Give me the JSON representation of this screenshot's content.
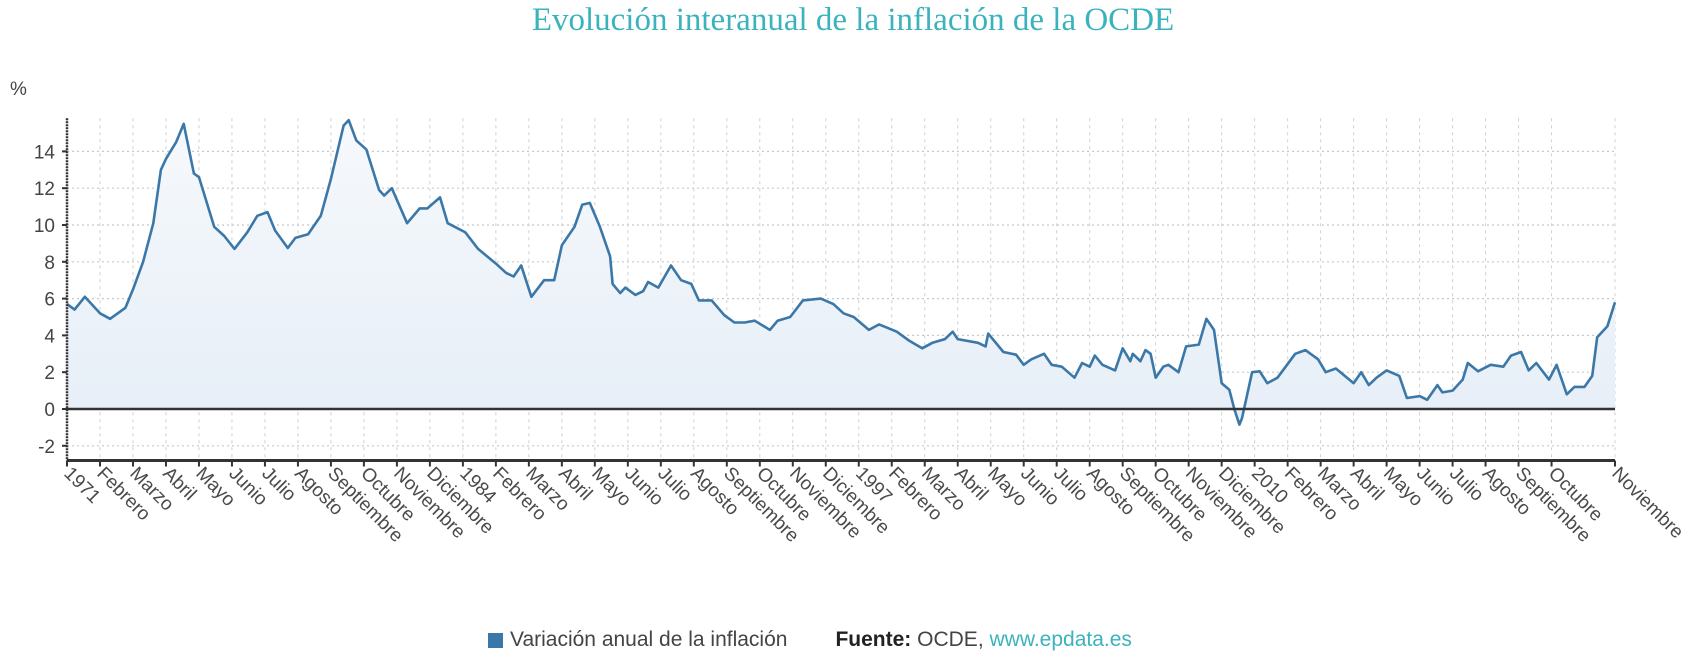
{
  "title": "Evolución interanual de la inflación de la OCDE",
  "legend": {
    "label": "Variación anual de la inflación",
    "color": "#3b78a8"
  },
  "source": {
    "label": "Fuente:",
    "text": "OCDE,",
    "link": "www.epdata.es"
  },
  "colors": {
    "title": "#3bb3bd",
    "line": "#3b78a8",
    "fill": "#e8eff7",
    "zero_line": "#333333"
  },
  "chart_data": {
    "type": "area",
    "title": "Evolución interanual de la inflación de la OCDE",
    "ylabel": "%",
    "xlabel": "",
    "ylim": [
      -2.8,
      15.8
    ],
    "yticks": [
      -2,
      0,
      2,
      4,
      6,
      8,
      10,
      12,
      14
    ],
    "x_range": [
      "1971-01",
      "2021-11"
    ],
    "grid": true,
    "legend_position": "bottom",
    "xtick_labels": [
      {
        "date": "1971-01",
        "label": "1971"
      },
      {
        "date": "1972-02",
        "label": "Febrero"
      },
      {
        "date": "1973-03",
        "label": "Marzo"
      },
      {
        "date": "1974-04",
        "label": "Abril"
      },
      {
        "date": "1975-05",
        "label": "Mayo"
      },
      {
        "date": "1976-06",
        "label": "Junio"
      },
      {
        "date": "1977-07",
        "label": "Julio"
      },
      {
        "date": "1978-08",
        "label": "Agosto"
      },
      {
        "date": "1979-09",
        "label": "Septiembre"
      },
      {
        "date": "1980-10",
        "label": "Octubre"
      },
      {
        "date": "1981-11",
        "label": "Noviembre"
      },
      {
        "date": "1982-12",
        "label": "Diciembre"
      },
      {
        "date": "1984-01",
        "label": "1984"
      },
      {
        "date": "1985-02",
        "label": "Febrero"
      },
      {
        "date": "1986-03",
        "label": "Marzo"
      },
      {
        "date": "1987-04",
        "label": "Abril"
      },
      {
        "date": "1988-05",
        "label": "Mayo"
      },
      {
        "date": "1989-06",
        "label": "Junio"
      },
      {
        "date": "1990-07",
        "label": "Julio"
      },
      {
        "date": "1991-08",
        "label": "Agosto"
      },
      {
        "date": "1992-09",
        "label": "Septiembre"
      },
      {
        "date": "1993-10",
        "label": "Octubre"
      },
      {
        "date": "1994-11",
        "label": "Noviembre"
      },
      {
        "date": "1995-12",
        "label": "Diciembre"
      },
      {
        "date": "1997-01",
        "label": "1997"
      },
      {
        "date": "1998-02",
        "label": "Febrero"
      },
      {
        "date": "1999-03",
        "label": "Marzo"
      },
      {
        "date": "2000-04",
        "label": "Abril"
      },
      {
        "date": "2001-05",
        "label": "Mayo"
      },
      {
        "date": "2002-06",
        "label": "Junio"
      },
      {
        "date": "2003-07",
        "label": "Julio"
      },
      {
        "date": "2004-08",
        "label": "Agosto"
      },
      {
        "date": "2005-09",
        "label": "Septiembre"
      },
      {
        "date": "2006-10",
        "label": "Octubre"
      },
      {
        "date": "2007-11",
        "label": "Noviembre"
      },
      {
        "date": "2008-12",
        "label": "Diciembre"
      },
      {
        "date": "2010-01",
        "label": "2010"
      },
      {
        "date": "2011-02",
        "label": "Febrero"
      },
      {
        "date": "2012-03",
        "label": "Marzo"
      },
      {
        "date": "2013-04",
        "label": "Abril"
      },
      {
        "date": "2014-05",
        "label": "Mayo"
      },
      {
        "date": "2015-06",
        "label": "Junio"
      },
      {
        "date": "2016-07",
        "label": "Julio"
      },
      {
        "date": "2017-08",
        "label": "Agosto"
      },
      {
        "date": "2018-09",
        "label": "Septiembre"
      },
      {
        "date": "2019-10",
        "label": "Octubre"
      },
      {
        "date": "2021-11",
        "label": "Noviembre"
      }
    ],
    "series": [
      {
        "name": "Variación anual de la inflación",
        "points": [
          [
            "1971-01",
            5.7
          ],
          [
            "1971-04",
            5.4
          ],
          [
            "1971-08",
            6.1
          ],
          [
            "1972-02",
            5.2
          ],
          [
            "1972-06",
            4.9
          ],
          [
            "1972-12",
            5.5
          ],
          [
            "1973-03",
            6.5
          ],
          [
            "1973-07",
            8.0
          ],
          [
            "1973-11",
            10.1
          ],
          [
            "1974-02",
            13.0
          ],
          [
            "1974-04",
            13.6
          ],
          [
            "1974-08",
            14.5
          ],
          [
            "1974-11",
            15.5
          ],
          [
            "1975-03",
            12.8
          ],
          [
            "1975-05",
            12.6
          ],
          [
            "1975-11",
            9.9
          ],
          [
            "1976-03",
            9.4
          ],
          [
            "1976-07",
            8.7
          ],
          [
            "1976-12",
            9.6
          ],
          [
            "1977-04",
            10.5
          ],
          [
            "1977-08",
            10.7
          ],
          [
            "1977-11",
            9.7
          ],
          [
            "1978-04",
            8.75
          ],
          [
            "1978-07",
            9.3
          ],
          [
            "1978-12",
            9.5
          ],
          [
            "1979-05",
            10.5
          ],
          [
            "1979-09",
            12.5
          ],
          [
            "1980-02",
            15.4
          ],
          [
            "1980-04",
            15.7
          ],
          [
            "1980-07",
            14.6
          ],
          [
            "1980-11",
            14.1
          ],
          [
            "1981-04",
            11.9
          ],
          [
            "1981-06",
            11.6
          ],
          [
            "1981-09",
            12.0
          ],
          [
            "1982-03",
            10.1
          ],
          [
            "1982-08",
            10.9
          ],
          [
            "1982-11",
            10.9
          ],
          [
            "1983-04",
            11.5
          ],
          [
            "1983-07",
            10.1
          ],
          [
            "1984-02",
            9.6
          ],
          [
            "1984-07",
            8.7
          ],
          [
            "1985-02",
            7.9
          ],
          [
            "1985-06",
            7.4
          ],
          [
            "1985-09",
            7.2
          ],
          [
            "1985-12",
            7.8
          ],
          [
            "1986-04",
            6.1
          ],
          [
            "1986-09",
            7.0
          ],
          [
            "1987-01",
            7.0
          ],
          [
            "1987-04",
            8.9
          ],
          [
            "1987-09",
            9.9
          ],
          [
            "1987-12",
            11.1
          ],
          [
            "1988-03",
            11.2
          ],
          [
            "1988-07",
            9.9
          ],
          [
            "1988-11",
            8.3
          ],
          [
            "1988-12",
            6.8
          ],
          [
            "1989-03",
            6.3
          ],
          [
            "1989-05",
            6.6
          ],
          [
            "1989-09",
            6.2
          ],
          [
            "1989-12",
            6.4
          ],
          [
            "1990-02",
            6.9
          ],
          [
            "1990-06",
            6.6
          ],
          [
            "1990-11",
            7.8
          ],
          [
            "1991-03",
            7.0
          ],
          [
            "1991-07",
            6.8
          ],
          [
            "1991-10",
            5.9
          ],
          [
            "1992-03",
            5.9
          ],
          [
            "1992-08",
            5.1
          ],
          [
            "1992-12",
            4.7
          ],
          [
            "1993-04",
            4.7
          ],
          [
            "1993-08",
            4.8
          ],
          [
            "1994-02",
            4.3
          ],
          [
            "1994-05",
            4.8
          ],
          [
            "1994-10",
            5.0
          ],
          [
            "1995-03",
            5.9
          ],
          [
            "1995-10",
            6.0
          ],
          [
            "1996-03",
            5.7
          ],
          [
            "1996-07",
            5.2
          ],
          [
            "1996-11",
            5.0
          ],
          [
            "1997-05",
            4.3
          ],
          [
            "1997-09",
            4.6
          ],
          [
            "1998-04",
            4.2
          ],
          [
            "1998-09",
            3.7
          ],
          [
            "1999-02",
            3.3
          ],
          [
            "1999-06",
            3.6
          ],
          [
            "1999-11",
            3.8
          ],
          [
            "2000-02",
            4.2
          ],
          [
            "2000-04",
            3.8
          ],
          [
            "2000-12",
            3.6
          ],
          [
            "2001-03",
            3.4
          ],
          [
            "2001-04",
            4.1
          ],
          [
            "2001-10",
            3.1
          ],
          [
            "2002-03",
            2.95
          ],
          [
            "2002-06",
            2.4
          ],
          [
            "2002-09",
            2.7
          ],
          [
            "2003-02",
            3.0
          ],
          [
            "2003-05",
            2.4
          ],
          [
            "2003-09",
            2.3
          ],
          [
            "2004-02",
            1.7
          ],
          [
            "2004-05",
            2.5
          ],
          [
            "2004-08",
            2.3
          ],
          [
            "2004-10",
            2.9
          ],
          [
            "2005-01",
            2.4
          ],
          [
            "2005-06",
            2.1
          ],
          [
            "2005-09",
            3.3
          ],
          [
            "2005-12",
            2.6
          ],
          [
            "2006-01",
            3.0
          ],
          [
            "2006-04",
            2.6
          ],
          [
            "2006-06",
            3.2
          ],
          [
            "2006-08",
            3.0
          ],
          [
            "2006-10",
            1.7
          ],
          [
            "2007-01",
            2.3
          ],
          [
            "2007-03",
            2.4
          ],
          [
            "2007-07",
            2.0
          ],
          [
            "2007-10",
            3.4
          ],
          [
            "2008-03",
            3.5
          ],
          [
            "2008-06",
            4.9
          ],
          [
            "2008-09",
            4.3
          ],
          [
            "2008-12",
            1.4
          ],
          [
            "2009-03",
            1.05
          ],
          [
            "2009-05",
            0.0
          ],
          [
            "2009-07",
            -0.85
          ],
          [
            "2009-08",
            -0.5
          ],
          [
            "2009-12",
            2.0
          ],
          [
            "2010-03",
            2.05
          ],
          [
            "2010-06",
            1.4
          ],
          [
            "2010-10",
            1.7
          ],
          [
            "2011-05",
            3.0
          ],
          [
            "2011-09",
            3.2
          ],
          [
            "2012-02",
            2.7
          ],
          [
            "2012-05",
            2.0
          ],
          [
            "2012-09",
            2.2
          ],
          [
            "2013-04",
            1.4
          ],
          [
            "2013-07",
            2.0
          ],
          [
            "2013-10",
            1.3
          ],
          [
            "2014-01",
            1.7
          ],
          [
            "2014-05",
            2.1
          ],
          [
            "2014-10",
            1.8
          ],
          [
            "2015-01",
            0.6
          ],
          [
            "2015-06",
            0.7
          ],
          [
            "2015-09",
            0.5
          ],
          [
            "2016-01",
            1.3
          ],
          [
            "2016-03",
            0.9
          ],
          [
            "2016-07",
            1.0
          ],
          [
            "2016-11",
            1.6
          ],
          [
            "2017-01",
            2.5
          ],
          [
            "2017-05",
            2.05
          ],
          [
            "2017-10",
            2.4
          ],
          [
            "2018-03",
            2.3
          ],
          [
            "2018-06",
            2.9
          ],
          [
            "2018-10",
            3.1
          ],
          [
            "2019-01",
            2.1
          ],
          [
            "2019-04",
            2.5
          ],
          [
            "2019-09",
            1.6
          ],
          [
            "2019-12",
            2.4
          ],
          [
            "2020-04",
            0.8
          ],
          [
            "2020-07",
            1.2
          ],
          [
            "2020-11",
            1.2
          ],
          [
            "2021-02",
            1.8
          ],
          [
            "2021-04",
            3.9
          ],
          [
            "2021-08",
            4.5
          ],
          [
            "2021-11",
            5.8
          ]
        ]
      }
    ]
  }
}
